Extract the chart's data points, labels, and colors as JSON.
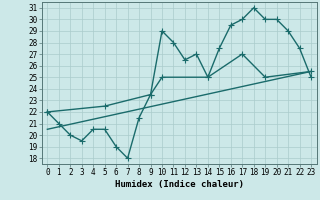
{
  "xlabel": "Humidex (Indice chaleur)",
  "xlim": [
    -0.5,
    23.5
  ],
  "ylim": [
    17.5,
    31.5
  ],
  "xtick_labels": [
    "0",
    "1",
    "2",
    "3",
    "4",
    "5",
    "6",
    "7",
    "8",
    "9",
    "10",
    "11",
    "12",
    "13",
    "14",
    "15",
    "16",
    "17",
    "18",
    "19",
    "20",
    "21",
    "22",
    "23"
  ],
  "ytick_labels": [
    "18",
    "19",
    "20",
    "21",
    "22",
    "23",
    "24",
    "25",
    "26",
    "27",
    "28",
    "29",
    "30",
    "31"
  ],
  "background_color": "#cce8e8",
  "grid_color": "#aacccc",
  "line_color": "#1a6b6b",
  "series1_x": [
    0,
    1,
    2,
    3,
    4,
    5,
    6,
    7,
    8,
    9,
    10,
    11,
    12,
    13,
    14,
    15,
    16,
    17,
    18,
    19,
    20,
    21,
    22,
    23
  ],
  "series1_y": [
    22,
    21,
    20,
    19.5,
    20.5,
    20.5,
    19,
    18,
    21.5,
    23.5,
    29,
    28,
    26.5,
    27,
    25,
    27.5,
    29.5,
    30,
    31,
    30,
    30,
    29,
    27.5,
    25
  ],
  "series2_x": [
    0,
    5,
    9,
    10,
    14,
    17,
    19,
    23
  ],
  "series2_y": [
    22,
    22.5,
    23.5,
    25,
    25,
    27,
    25,
    25.5
  ],
  "series3_x": [
    0,
    23
  ],
  "series3_y": [
    20.5,
    25.5
  ],
  "marker": "+",
  "markersize": 4,
  "linewidth": 1.0,
  "tick_fontsize": 5.5,
  "xlabel_fontsize": 6.5
}
